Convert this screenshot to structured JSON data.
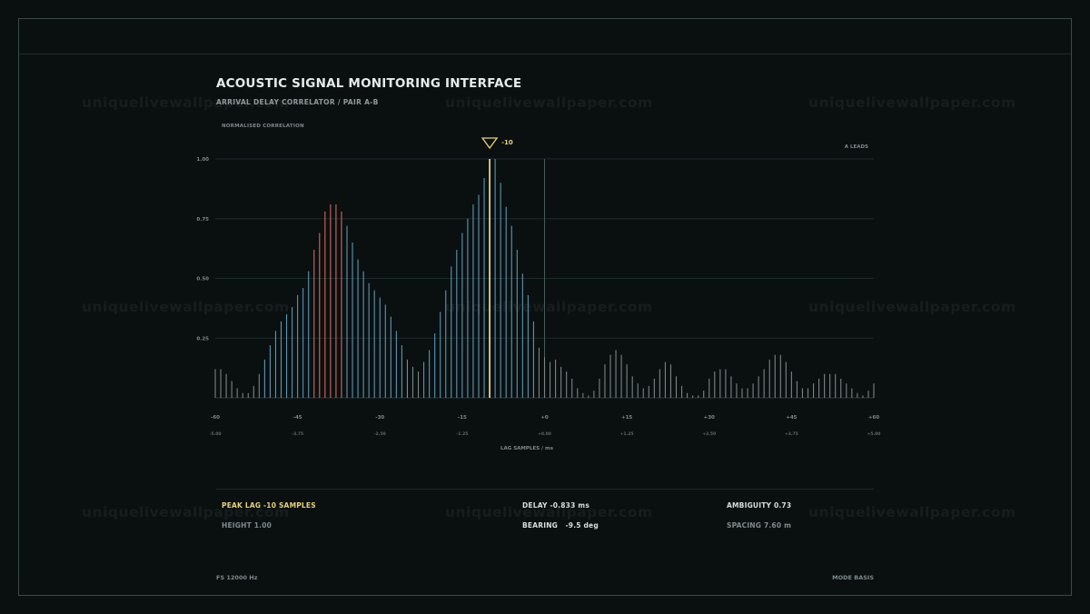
{
  "header": {
    "title": "ACOUSTIC SIGNAL MONITORING INTERFACE",
    "subtitle": "ARRIVAL DELAY CORRELATOR / PAIR A-B",
    "y_axis_label": "NORMALISED CORRELATION",
    "leads_label": "A LEADS"
  },
  "watermark": "uniquelivewallpaper.com",
  "chart_data": {
    "type": "bar",
    "x_label": "LAG SAMPLES / ms",
    "xlim": [
      -60,
      60
    ],
    "ylim": [
      0,
      1.0
    ],
    "y_ticks": [
      "1.00",
      "0.75",
      "0.50",
      "0.25"
    ],
    "x_ticks": [
      "-60",
      "-45",
      "-30",
      "-15",
      "+0",
      "+15",
      "+30",
      "+45",
      "+60"
    ],
    "x_ticks_ms": [
      "-5.00",
      "-3.75",
      "-2.50",
      "-1.25",
      "+0.00",
      "+1.25",
      "+2.50",
      "+3.75",
      "+5.00"
    ],
    "x": [
      -60,
      -59,
      -58,
      -57,
      -56,
      -55,
      -54,
      -53,
      -52,
      -51,
      -50,
      -49,
      -48,
      -47,
      -46,
      -45,
      -44,
      -43,
      -42,
      -41,
      -40,
      -39,
      -38,
      -37,
      -36,
      -35,
      -34,
      -33,
      -32,
      -31,
      -30,
      -29,
      -28,
      -27,
      -26,
      -25,
      -24,
      -23,
      -22,
      -21,
      -20,
      -19,
      -18,
      -17,
      -16,
      -15,
      -14,
      -13,
      -12,
      -11,
      -10,
      -9,
      -8,
      -7,
      -6,
      -5,
      -4,
      -3,
      -2,
      -1,
      0,
      1,
      2,
      3,
      4,
      5,
      6,
      7,
      8,
      9,
      10,
      11,
      12,
      13,
      14,
      15,
      16,
      17,
      18,
      19,
      20,
      21,
      22,
      23,
      24,
      25,
      26,
      27,
      28,
      29,
      30,
      31,
      32,
      33,
      34,
      35,
      36,
      37,
      38,
      39,
      40,
      41,
      42,
      43,
      44,
      45,
      46,
      47,
      48,
      49,
      50,
      51,
      52,
      53,
      54,
      55,
      56,
      57,
      58,
      59,
      60
    ],
    "values": [
      0.12,
      0.12,
      0.1,
      0.07,
      0.04,
      0.02,
      0.02,
      0.05,
      0.1,
      0.16,
      0.22,
      0.28,
      0.32,
      0.35,
      0.38,
      0.43,
      0.46,
      0.53,
      0.62,
      0.69,
      0.78,
      0.81,
      0.81,
      0.78,
      0.72,
      0.65,
      0.58,
      0.53,
      0.48,
      0.45,
      0.42,
      0.39,
      0.34,
      0.28,
      0.22,
      0.16,
      0.13,
      0.11,
      0.15,
      0.2,
      0.27,
      0.36,
      0.45,
      0.55,
      0.62,
      0.69,
      0.75,
      0.81,
      0.85,
      0.92,
      1.0,
      1.0,
      0.9,
      0.8,
      0.72,
      0.62,
      0.52,
      0.43,
      0.32,
      0.21,
      0.17,
      0.15,
      0.16,
      0.13,
      0.11,
      0.08,
      0.04,
      0.02,
      0.01,
      0.03,
      0.08,
      0.14,
      0.18,
      0.2,
      0.18,
      0.14,
      0.09,
      0.06,
      0.04,
      0.05,
      0.08,
      0.12,
      0.15,
      0.14,
      0.09,
      0.05,
      0.02,
      0.01,
      0.01,
      0.03,
      0.08,
      0.11,
      0.12,
      0.12,
      0.09,
      0.06,
      0.04,
      0.04,
      0.06,
      0.09,
      0.12,
      0.16,
      0.18,
      0.18,
      0.15,
      0.11,
      0.07,
      0.04,
      0.04,
      0.06,
      0.08,
      0.1,
      0.1,
      0.1,
      0.08,
      0.06,
      0.04,
      0.02,
      0.01,
      0.03,
      0.06
    ],
    "highlight_range": [
      -42,
      -37
    ],
    "peak_lag": -10,
    "peak_marker_label": "-10",
    "zero_line": 0,
    "colors": {
      "background": "#0a0f10",
      "grid": "#1c2a2c",
      "base": "#7c8488",
      "main_lobe": "#5a97b5",
      "sidelobe": "#d36a5c",
      "peak": "#e8d27a",
      "zero_line": "#4b575a"
    }
  },
  "stats": {
    "peak_lag": "PEAK LAG  -10 SAMPLES",
    "height": "HEIGHT 1.00",
    "delay": "DELAY -0.833 ms",
    "bearing": "BEARING   -9.5 deg",
    "ambiguity": "AMBIGUITY 0.73",
    "spacing": "SPACING 7.60 m"
  },
  "footer": {
    "sample_rate": "FS 12000 Hz",
    "mode": "MODE BASIS"
  }
}
